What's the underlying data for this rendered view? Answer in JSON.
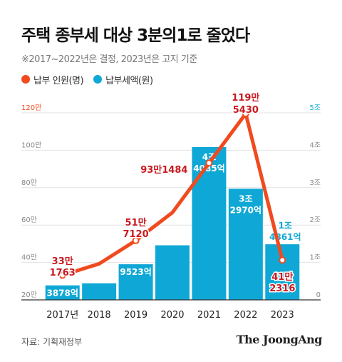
{
  "title": "주택 종부세 대상 3분의1로 줄었다",
  "subtitle": "※2017~2022년은 결정, 2023년은 고지 기준",
  "source": "자료: 기획재정부",
  "logo": "The JoongAng",
  "colors": {
    "line": "#f04a1e",
    "bar": "#0fa8d6",
    "bar_label_bg": "#0fa8d6"
  },
  "chart_data": {
    "type": "bar+line",
    "categories": [
      "2017년",
      "2018",
      "2019",
      "2020",
      "2021",
      "2022",
      "2023"
    ],
    "legend": [
      {
        "name": "납부 인원(명)",
        "color": "#f04a1e"
      },
      {
        "name": "납부세액(원)",
        "color": "#0fa8d6"
      }
    ],
    "left_axis": {
      "ticks": [
        "20만",
        "40만",
        "60만",
        "80만",
        "100만",
        "120만"
      ],
      "tick_values": [
        200000,
        400000,
        600000,
        800000,
        1000000,
        1200000
      ],
      "range": [
        200000,
        1200000
      ]
    },
    "right_axis": {
      "ticks": [
        "0",
        "1조",
        "2조",
        "3조",
        "4조",
        "5조"
      ],
      "tick_values": [
        0,
        10000,
        20000,
        30000,
        40000,
        50000
      ],
      "unit": "억원",
      "range": [
        0,
        50000
      ]
    },
    "series": [
      {
        "name": "납부세액(원)",
        "type": "bar",
        "axis": "right",
        "values": [
          3878,
          4432,
          9523,
          14590,
          40852,
          29703,
          14861
        ],
        "labels": [
          [
            "3878억"
          ],
          [],
          [
            "9523억"
          ],
          [],
          [
            "4조",
            "4085억"
          ],
          [
            "3조",
            "2970억"
          ],
          [
            "1조",
            "4861억"
          ]
        ]
      },
      {
        "name": "납부 인원(명)",
        "type": "line",
        "axis": "left",
        "values": [
          331763,
          393000,
          517120,
          667000,
          931484,
          1195430,
          412316
        ],
        "labels": [
          [
            "33만",
            "1763"
          ],
          [],
          [
            "51만",
            "7120"
          ],
          [],
          [
            "93만1484"
          ],
          [
            "119만",
            "5430"
          ],
          [
            "41만",
            "2316"
          ]
        ]
      }
    ]
  }
}
